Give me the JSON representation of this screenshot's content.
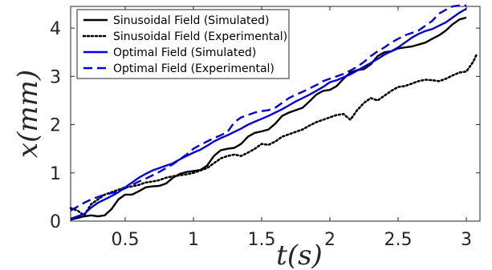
{
  "chart_data": {
    "type": "line",
    "title": "",
    "xlabel": "t(s)",
    "ylabel": "x(mm)",
    "xlim": [
      0.1,
      3.1
    ],
    "ylim": [
      0,
      4.45
    ],
    "x_ticks": [
      0.5,
      1,
      1.5,
      2,
      2.5,
      3
    ],
    "x_tick_labels": [
      "0.5",
      "1",
      "1.5",
      "2",
      "2.5",
      "3"
    ],
    "y_ticks": [
      0,
      1,
      2,
      3,
      4
    ],
    "y_tick_labels": [
      "0",
      "1",
      "2",
      "3",
      "4"
    ],
    "grid": false,
    "legend_position": "top-left",
    "series": [
      {
        "name": "Sinusoidal Field (Simulated)",
        "color": "#000000",
        "style": "solid",
        "x": [
          0.1,
          0.2,
          0.25,
          0.3,
          0.35,
          0.4,
          0.45,
          0.5,
          0.55,
          0.6,
          0.65,
          0.7,
          0.75,
          0.8,
          0.85,
          0.9,
          0.95,
          1.0,
          1.05,
          1.1,
          1.15,
          1.2,
          1.25,
          1.3,
          1.35,
          1.4,
          1.45,
          1.5,
          1.55,
          1.6,
          1.65,
          1.7,
          1.75,
          1.8,
          1.85,
          1.9,
          1.95,
          2.0,
          2.05,
          2.1,
          2.15,
          2.2,
          2.25,
          2.3,
          2.35,
          2.4,
          2.45,
          2.5,
          2.55,
          2.6,
          2.65,
          2.7,
          2.75,
          2.8,
          2.85,
          2.9,
          2.95,
          3.0
        ],
        "y": [
          0.03,
          0.1,
          0.12,
          0.1,
          0.12,
          0.25,
          0.45,
          0.55,
          0.55,
          0.62,
          0.7,
          0.72,
          0.73,
          0.78,
          0.9,
          0.98,
          1.02,
          1.04,
          1.06,
          1.15,
          1.35,
          1.47,
          1.5,
          1.52,
          1.6,
          1.75,
          1.83,
          1.86,
          1.9,
          2.02,
          2.18,
          2.25,
          2.3,
          2.35,
          2.48,
          2.62,
          2.7,
          2.72,
          2.8,
          2.95,
          3.08,
          3.13,
          3.15,
          3.25,
          3.42,
          3.5,
          3.52,
          3.58,
          3.6,
          3.62,
          3.66,
          3.7,
          3.78,
          3.85,
          3.95,
          4.08,
          4.18,
          4.22
        ]
      },
      {
        "name": "Sinusoidal Field (Experimental)",
        "color": "#000000",
        "style": "dotted",
        "x": [
          0.1,
          0.15,
          0.2,
          0.25,
          0.3,
          0.35,
          0.4,
          0.45,
          0.5,
          0.55,
          0.6,
          0.65,
          0.7,
          0.75,
          0.8,
          0.85,
          0.9,
          0.95,
          1.0,
          1.05,
          1.1,
          1.15,
          1.2,
          1.25,
          1.3,
          1.35,
          1.4,
          1.45,
          1.5,
          1.55,
          1.6,
          1.65,
          1.7,
          1.75,
          1.8,
          1.85,
          1.9,
          1.95,
          2.0,
          2.05,
          2.1,
          2.15,
          2.2,
          2.25,
          2.3,
          2.35,
          2.4,
          2.45,
          2.5,
          2.55,
          2.6,
          2.65,
          2.7,
          2.75,
          2.8,
          2.85,
          2.9,
          2.95,
          3.0,
          3.05,
          3.08
        ],
        "y": [
          0.27,
          0.22,
          0.12,
          0.35,
          0.45,
          0.55,
          0.6,
          0.65,
          0.7,
          0.72,
          0.75,
          0.8,
          0.82,
          0.85,
          0.9,
          0.93,
          0.95,
          0.97,
          1.0,
          1.05,
          1.1,
          1.2,
          1.3,
          1.35,
          1.38,
          1.35,
          1.42,
          1.5,
          1.6,
          1.58,
          1.65,
          1.75,
          1.8,
          1.85,
          1.9,
          1.98,
          2.05,
          2.1,
          2.15,
          2.2,
          2.22,
          2.1,
          2.3,
          2.45,
          2.55,
          2.5,
          2.6,
          2.7,
          2.78,
          2.8,
          2.85,
          2.9,
          2.93,
          2.92,
          2.9,
          2.95,
          3.02,
          3.08,
          3.1,
          3.3,
          3.48
        ]
      },
      {
        "name": "Optimal Field (Simulated)",
        "color": "#0000dd",
        "style": "solid",
        "x": [
          0.1,
          0.2,
          0.25,
          0.3,
          0.35,
          0.4,
          0.45,
          0.5,
          0.55,
          0.6,
          0.65,
          0.7,
          0.75,
          0.8,
          0.85,
          0.9,
          0.95,
          1.0,
          1.05,
          1.1,
          1.15,
          1.2,
          1.25,
          1.3,
          1.35,
          1.4,
          1.45,
          1.5,
          1.55,
          1.6,
          1.65,
          1.7,
          1.75,
          1.8,
          1.85,
          1.9,
          1.95,
          2.0,
          2.05,
          2.1,
          2.15,
          2.2,
          2.25,
          2.3,
          2.35,
          2.4,
          2.45,
          2.5,
          2.55,
          2.6,
          2.65,
          2.7,
          2.75,
          2.8,
          2.85,
          2.9,
          2.95,
          3.0
        ],
        "y": [
          0.05,
          0.15,
          0.28,
          0.38,
          0.45,
          0.52,
          0.6,
          0.7,
          0.8,
          0.9,
          0.98,
          1.05,
          1.1,
          1.15,
          1.2,
          1.28,
          1.35,
          1.42,
          1.48,
          1.56,
          1.65,
          1.72,
          1.78,
          1.85,
          1.92,
          2.0,
          2.06,
          2.12,
          2.18,
          2.25,
          2.32,
          2.4,
          2.48,
          2.55,
          2.62,
          2.7,
          2.78,
          2.88,
          2.92,
          2.98,
          3.04,
          3.12,
          3.2,
          3.28,
          3.36,
          3.45,
          3.52,
          3.6,
          3.7,
          3.8,
          3.88,
          3.94,
          3.98,
          4.05,
          4.12,
          4.22,
          4.32,
          4.4
        ]
      },
      {
        "name": "Optimal Field (Experimental)",
        "color": "#0000dd",
        "style": "dashed",
        "x": [
          0.1,
          0.15,
          0.2,
          0.25,
          0.3,
          0.35,
          0.4,
          0.45,
          0.5,
          0.55,
          0.6,
          0.65,
          0.7,
          0.75,
          0.8,
          0.85,
          0.9,
          0.95,
          1.0,
          1.05,
          1.1,
          1.15,
          1.2,
          1.25,
          1.3,
          1.35,
          1.4,
          1.45,
          1.5,
          1.55,
          1.6,
          1.65,
          1.7,
          1.75,
          1.8,
          1.85,
          1.9,
          1.95,
          2.0,
          2.05,
          2.1,
          2.15,
          2.2,
          2.25,
          2.3,
          2.35,
          2.4,
          2.45,
          2.5,
          2.55,
          2.6,
          2.65,
          2.7,
          2.75,
          2.8,
          2.85,
          2.9,
          2.95,
          3.0
        ],
        "y": [
          0.22,
          0.3,
          0.38,
          0.45,
          0.5,
          0.55,
          0.58,
          0.62,
          0.68,
          0.75,
          0.82,
          0.88,
          0.95,
          1.02,
          1.1,
          1.18,
          1.28,
          1.38,
          1.5,
          1.58,
          1.65,
          1.72,
          1.78,
          1.85,
          2.05,
          2.15,
          2.2,
          2.25,
          2.28,
          2.3,
          2.35,
          2.45,
          2.55,
          2.62,
          2.68,
          2.75,
          2.82,
          2.9,
          2.95,
          3.0,
          3.05,
          3.12,
          3.2,
          3.3,
          3.42,
          3.52,
          3.6,
          3.7,
          3.78,
          3.85,
          3.9,
          3.95,
          4.05,
          4.15,
          4.3,
          4.38,
          4.45,
          4.47,
          4.47
        ]
      }
    ]
  }
}
